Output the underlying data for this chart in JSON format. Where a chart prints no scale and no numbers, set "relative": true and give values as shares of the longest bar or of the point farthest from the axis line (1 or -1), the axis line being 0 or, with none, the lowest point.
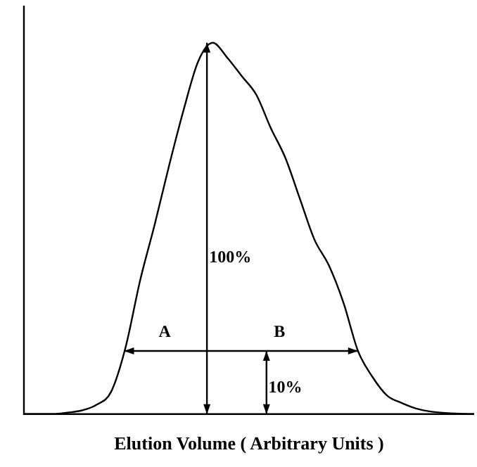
{
  "chart_data": {
    "type": "line",
    "relative": true,
    "xlabel": "Elution Volume ( Arbitrary Units )",
    "categories": [
      null,
      null,
      null,
      null,
      null,
      null,
      null,
      null,
      null,
      null,
      null,
      null,
      null,
      null,
      null,
      null,
      null,
      null,
      null,
      null,
      null,
      null,
      null,
      null,
      null,
      null,
      null,
      null,
      null,
      null,
      null,
      null
    ],
    "series": [
      {
        "color": "#000000",
        "values": [
          0,
          0,
          0,
          0.004,
          0.01,
          0.025,
          0.06,
          0.18,
          0.36,
          0.51,
          0.67,
          0.82,
          0.95,
          1,
          0.96,
          0.91,
          0.86,
          0.77,
          0.69,
          0.58,
          0.47,
          0.4,
          0.3,
          0.17,
          0.1,
          0.05,
          0.03,
          0.015,
          0.007,
          0.003,
          0.001,
          0
        ]
      }
    ],
    "annotations": [
      "100%",
      "A",
      "B",
      "10%"
    ],
    "marker": "none",
    "line_style": "solid",
    "grid": false,
    "legend": false
  }
}
